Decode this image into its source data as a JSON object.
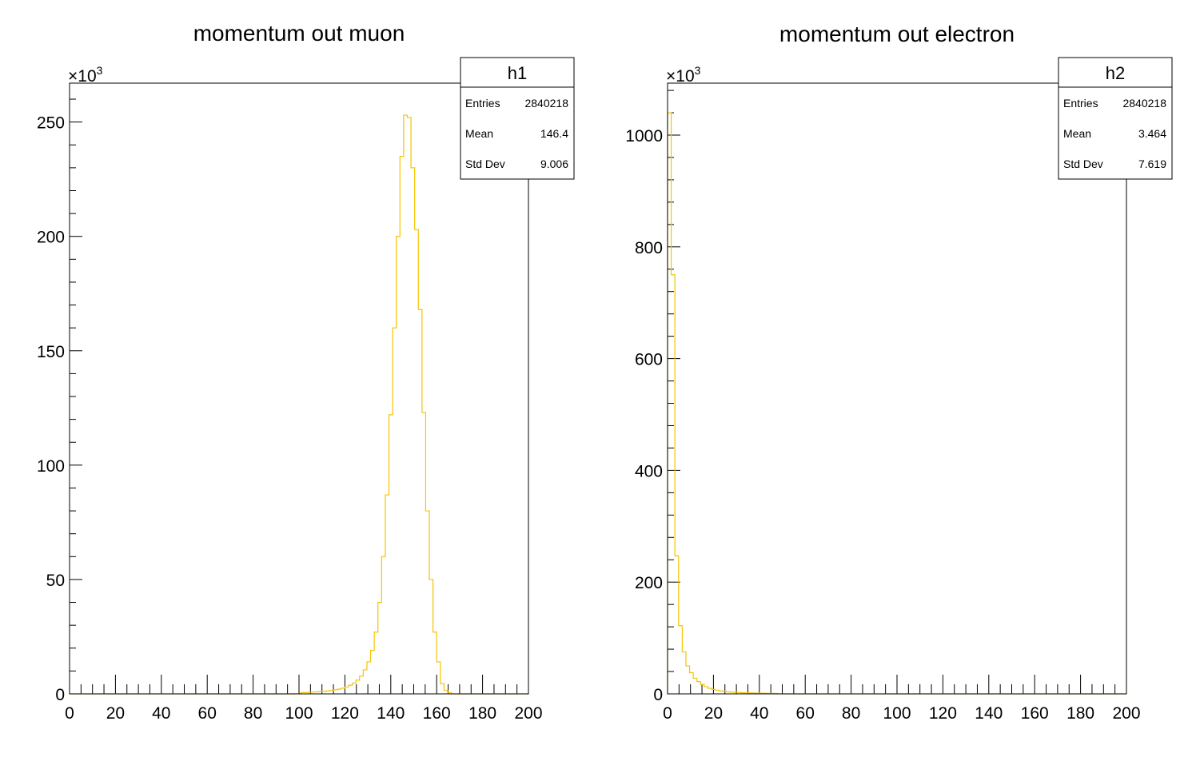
{
  "panels": [
    {
      "stats": {
        "name": "h1",
        "rows": [
          {
            "label": "Entries",
            "value": "2840218"
          },
          {
            "label": "Mean",
            "value": "146.4"
          },
          {
            "label": "Std Dev",
            "value": "9.006"
          }
        ]
      }
    },
    {
      "stats": {
        "name": "h2",
        "rows": [
          {
            "label": "Entries",
            "value": "2840218"
          },
          {
            "label": "Mean",
            "value": "3.464"
          },
          {
            "label": "Std Dev",
            "value": "7.619"
          }
        ]
      }
    }
  ],
  "colors": {
    "histogram": "#f5c400",
    "axis": "#000000",
    "background": "#ffffff"
  },
  "chart_data": [
    {
      "type": "bar",
      "title": "momentum out muon",
      "xlim": [
        0,
        200
      ],
      "ylim": [
        0,
        267
      ],
      "y_multiplier_label": "×10",
      "y_multiplier_exponent": "3",
      "x_ticks": [
        "0",
        "20",
        "40",
        "60",
        "80",
        "100",
        "120",
        "140",
        "160",
        "180",
        "200"
      ],
      "y_ticks": [
        "0",
        "50",
        "100",
        "150",
        "200",
        "250"
      ],
      "bin_width": 1.6,
      "x_start": 100.8,
      "values": [
        0.6,
        0.6,
        0.7,
        0.8,
        0.9,
        1,
        1.1,
        1.3,
        1.5,
        1.8,
        2.1,
        2.5,
        3,
        3.8,
        4.7,
        6,
        7.8,
        10.5,
        14,
        19,
        27,
        40,
        60,
        87,
        122,
        160,
        200,
        235,
        253,
        252,
        230,
        203,
        168,
        123,
        80,
        50,
        27,
        14,
        4.5,
        1.5,
        0.5
      ],
      "grid": false,
      "legend": "top-right"
    },
    {
      "type": "bar",
      "title": "momentum out electron",
      "xlim": [
        0,
        200
      ],
      "ylim": [
        0,
        1093
      ],
      "y_multiplier_label": "×10",
      "y_multiplier_exponent": "3",
      "x_ticks": [
        "0",
        "20",
        "40",
        "60",
        "80",
        "100",
        "120",
        "140",
        "160",
        "180",
        "200"
      ],
      "y_ticks": [
        "0",
        "200",
        "400",
        "600",
        "800",
        "1000"
      ],
      "bin_width": 1.6,
      "x_start": 0,
      "values": [
        1040,
        750,
        247,
        122,
        75,
        50,
        38,
        28,
        22,
        17,
        13,
        10,
        8,
        6.5,
        5.2,
        4.3,
        3.6,
        3,
        2.6,
        2.3,
        2,
        1.8,
        1.6,
        1.4,
        1.3,
        1.2,
        1.1,
        1,
        0.9,
        0.8
      ],
      "grid": false,
      "legend": "top-right"
    }
  ]
}
